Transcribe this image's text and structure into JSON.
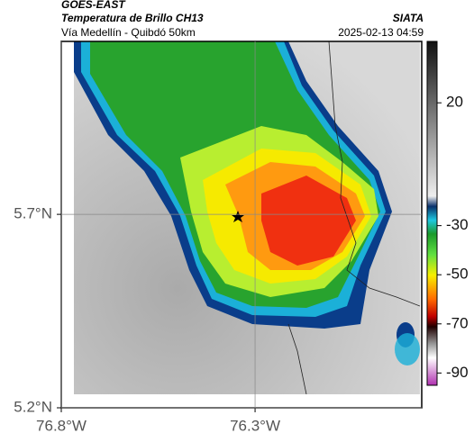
{
  "header": {
    "title": "GOES-EAST",
    "subtitle": "Temperatura de Brillo CH13",
    "route": "Vía Medellín - Quibdó 50km",
    "source": "SIATA",
    "timestamp": "2025-02-13 04:59"
  },
  "map": {
    "xlim": [
      -76.8,
      -75.87
    ],
    "ylim": [
      5.2,
      6.147
    ],
    "xticks": [
      {
        "value": -76.8,
        "label": "76.8°W"
      },
      {
        "value": -76.3,
        "label": "76.3°W"
      }
    ],
    "yticks": [
      {
        "value": 5.7,
        "label": "5.7°N"
      },
      {
        "value": 5.2,
        "label": "5.2°N"
      }
    ]
  },
  "colorbar": {
    "lim": [
      -95,
      45
    ],
    "ticks": [
      20,
      -30,
      -50,
      -70,
      -90
    ]
  }
}
